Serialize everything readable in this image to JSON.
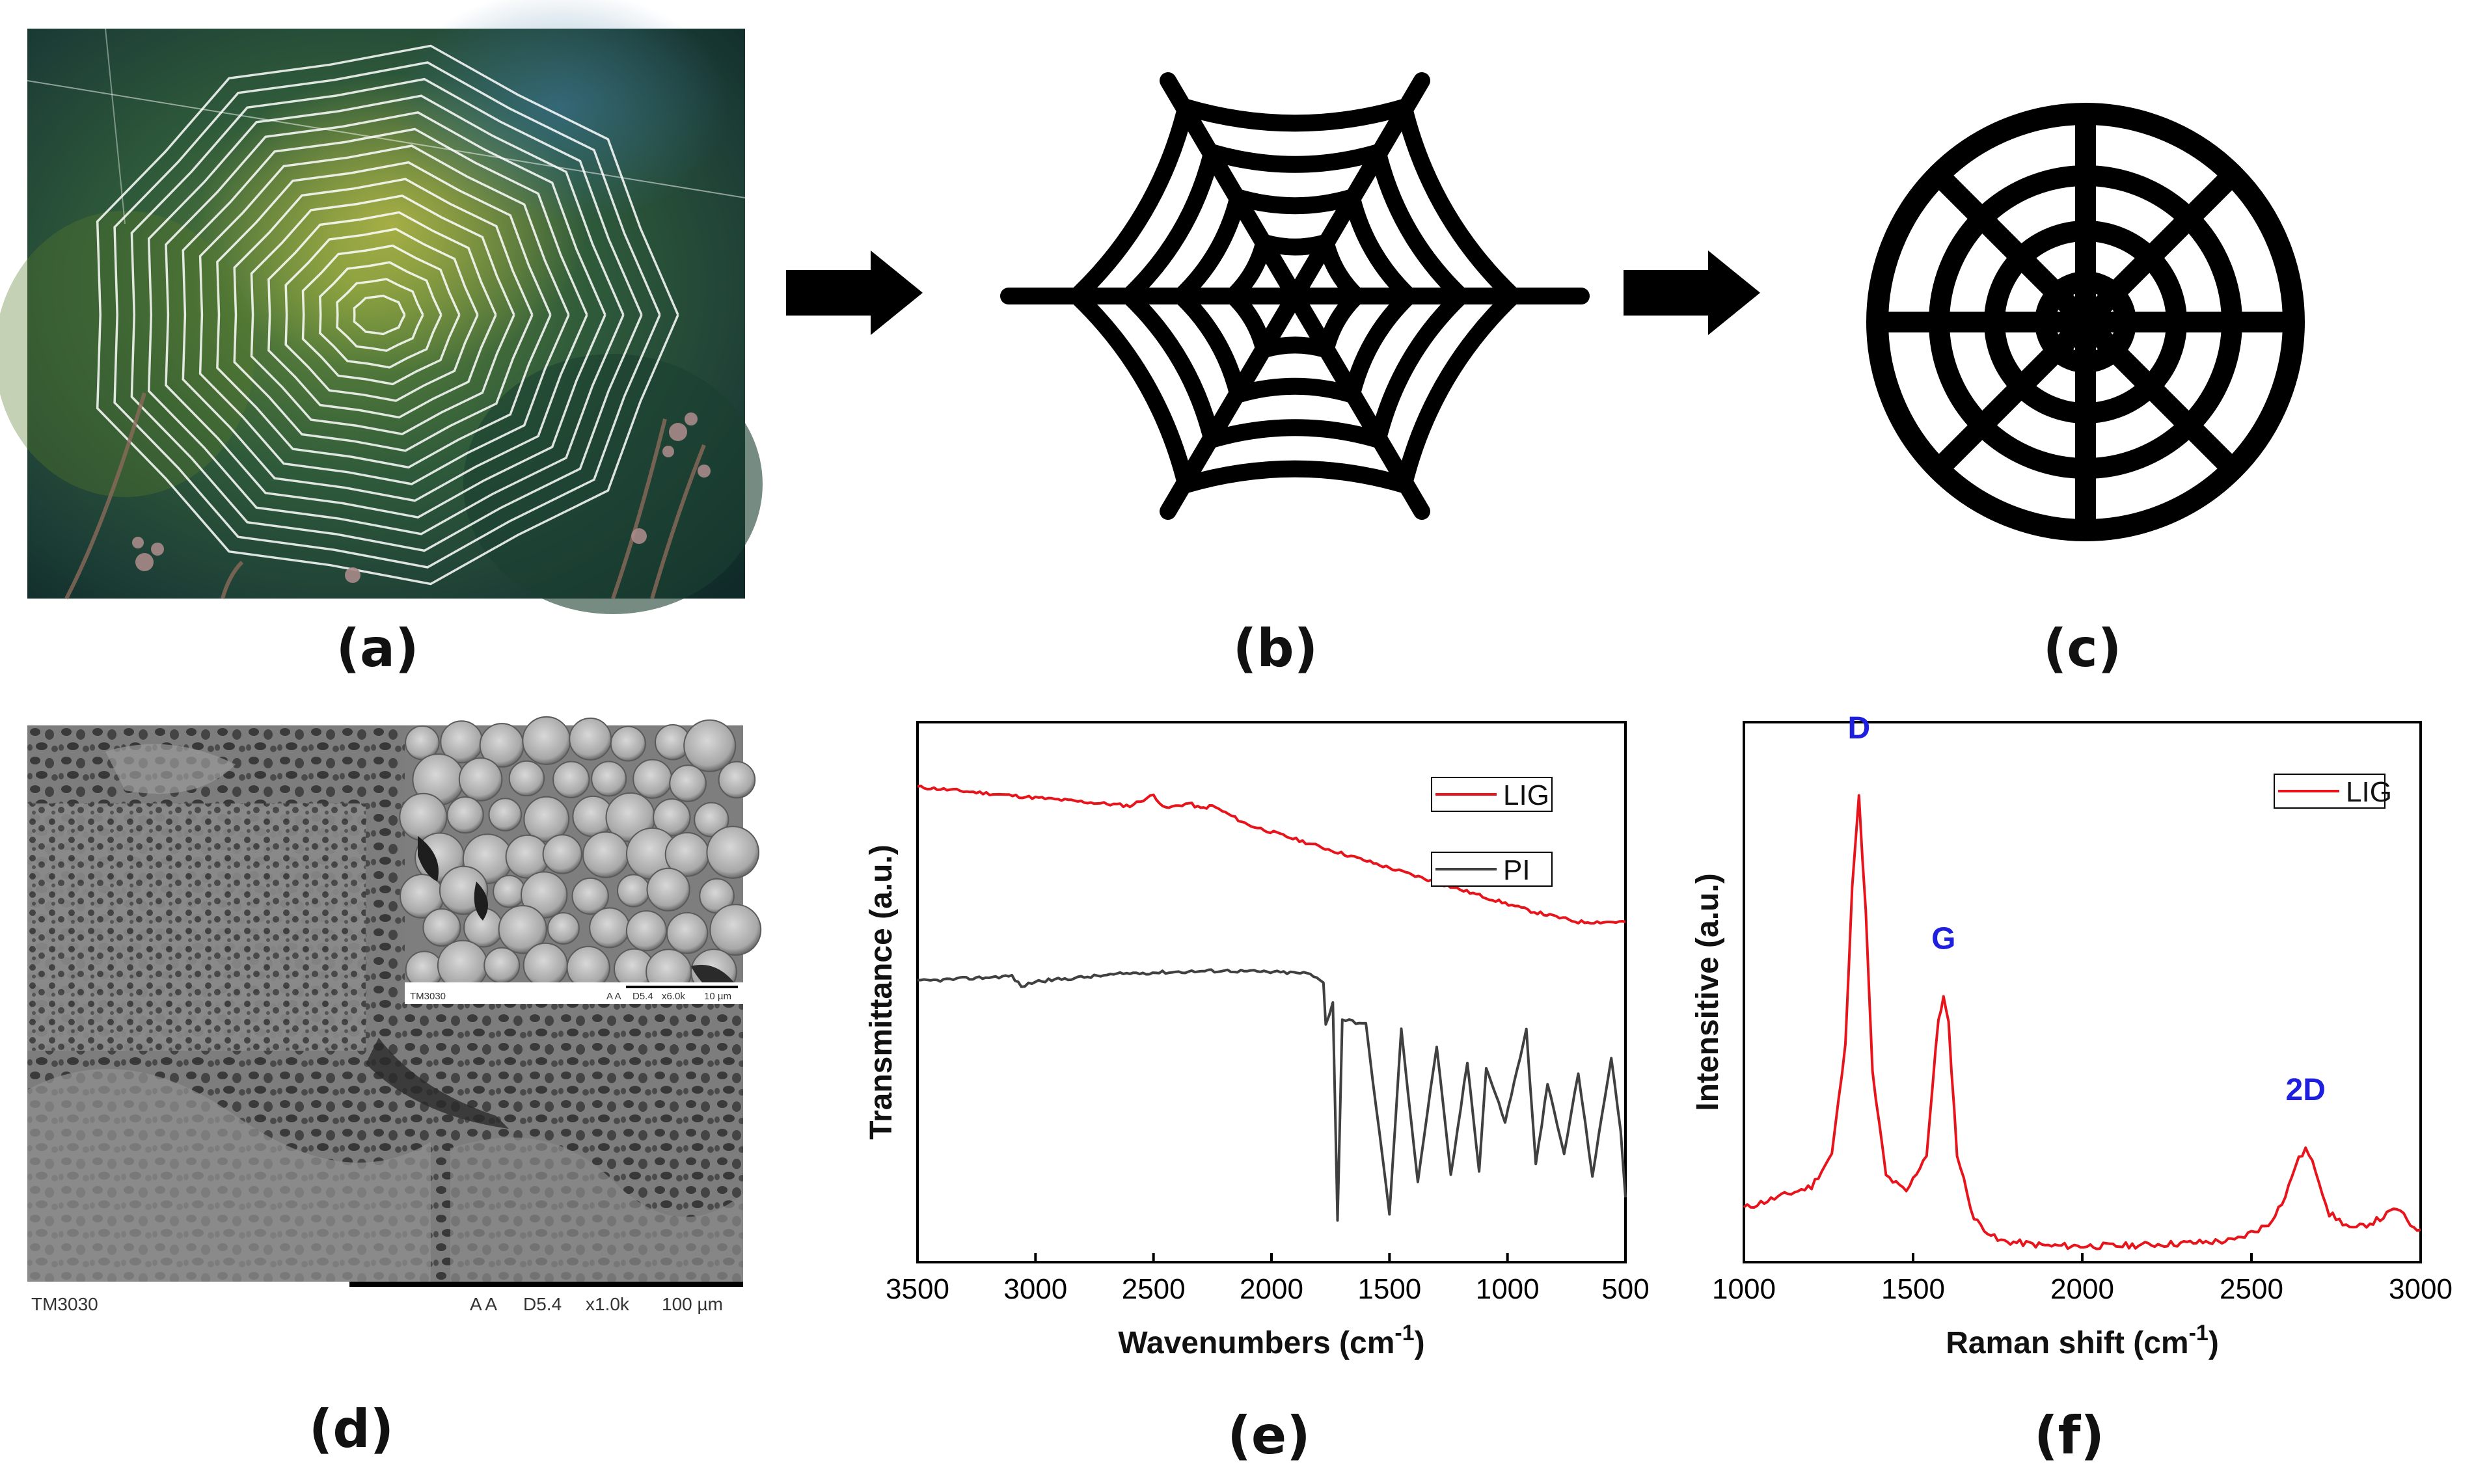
{
  "figure": {
    "panel_labels": [
      "(a)",
      "(b)",
      "(c)",
      "(d)",
      "(e)",
      "(f)"
    ]
  },
  "sem": {
    "main_bar": {
      "model": "TM3030",
      "mode": "A A",
      "wd": "D5.4",
      "mag": "x1.0k",
      "scale": "100 µm"
    },
    "inset_bar": {
      "model": "TM3030",
      "mode": "A A",
      "wd": "D5.4",
      "mag": "x6.0k",
      "scale": "10 µm"
    }
  },
  "chart_data": [
    {
      "type": "line",
      "panel": "(e)",
      "xlabel": "Wavenumbers (cm",
      "xlabel_sup": "-1",
      "xlabel_close": ")",
      "ylabel": "Transmittance (a.u.)",
      "xlim": [
        3500,
        500
      ],
      "x_reversed": true,
      "xticks": [
        "3500",
        "3000",
        "2500",
        "2000",
        "1500",
        "1000",
        "500"
      ],
      "legend_position": "top-right",
      "series": [
        {
          "name": "LIG",
          "color": "#e8141c",
          "x": [
            3500,
            3000,
            2600,
            2500,
            2450,
            2350,
            2300,
            2250,
            2100,
            1800,
            1500,
            1200,
            900,
            700,
            500
          ],
          "y": [
            0.88,
            0.86,
            0.845,
            0.865,
            0.84,
            0.85,
            0.84,
            0.845,
            0.81,
            0.77,
            0.73,
            0.69,
            0.65,
            0.63,
            0.63
          ]
        },
        {
          "name": "PI",
          "color": "#404040",
          "x": [
            3500,
            3100,
            3060,
            3000,
            2600,
            2200,
            1850,
            1780,
            1770,
            1740,
            1720,
            1700,
            1600,
            1500,
            1450,
            1380,
            1300,
            1240,
            1170,
            1120,
            1090,
            1010,
            920,
            880,
            830,
            760,
            700,
            640,
            560,
            520,
            500
          ],
          "y": [
            0.52,
            0.53,
            0.51,
            0.52,
            0.535,
            0.54,
            0.535,
            0.52,
            0.44,
            0.48,
            0.08,
            0.45,
            0.44,
            0.09,
            0.43,
            0.15,
            0.4,
            0.16,
            0.37,
            0.17,
            0.36,
            0.26,
            0.43,
            0.18,
            0.33,
            0.2,
            0.35,
            0.16,
            0.38,
            0.24,
            0.12
          ]
        }
      ]
    },
    {
      "type": "line",
      "panel": "(f)",
      "xlabel": "Raman shift (cm",
      "xlabel_sup": "-1",
      "xlabel_close": ")",
      "ylabel": "Intensitive (a.u.)",
      "xlim": [
        1000,
        3000
      ],
      "xticks": [
        "1000",
        "1500",
        "2000",
        "2500",
        "3000"
      ],
      "legend_position": "top-right",
      "peak_labels": [
        {
          "text": "D",
          "x": 1340,
          "y": 0.97
        },
        {
          "text": "G",
          "x": 1590,
          "y": 0.58
        },
        {
          "text": "2D",
          "x": 2660,
          "y": 0.3
        }
      ],
      "series": [
        {
          "name": "LIG",
          "color": "#e8141c",
          "x": [
            1000,
            1100,
            1200,
            1260,
            1300,
            1320,
            1340,
            1360,
            1380,
            1420,
            1480,
            1540,
            1575,
            1590,
            1605,
            1630,
            1680,
            1750,
            1900,
            2100,
            2300,
            2450,
            2550,
            2600,
            2630,
            2660,
            2690,
            2730,
            2800,
            2880,
            2930,
            2970,
            3000
          ],
          "y": [
            0.1,
            0.12,
            0.14,
            0.2,
            0.4,
            0.7,
            0.86,
            0.65,
            0.35,
            0.16,
            0.13,
            0.2,
            0.45,
            0.49,
            0.44,
            0.2,
            0.08,
            0.04,
            0.03,
            0.03,
            0.035,
            0.04,
            0.07,
            0.12,
            0.18,
            0.21,
            0.17,
            0.09,
            0.06,
            0.08,
            0.1,
            0.07,
            0.06
          ]
        }
      ]
    }
  ]
}
